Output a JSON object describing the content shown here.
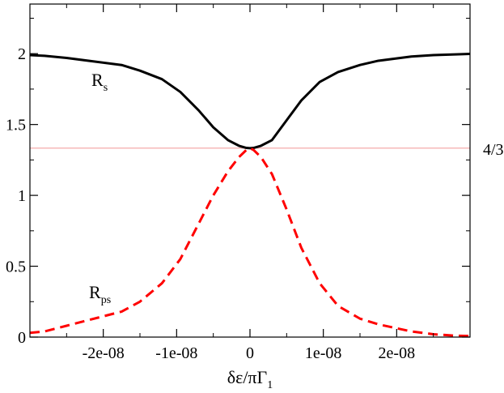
{
  "chart_data": {
    "type": "line",
    "xlabel": "δε/πΓ",
    "xlabel_sub": "1",
    "ylabel": "",
    "xlim": [
      -3e-08,
      3e-08
    ],
    "ylim": [
      0,
      2.35
    ],
    "x_ticks": [
      -2e-08,
      -1e-08,
      0,
      1e-08,
      2e-08
    ],
    "x_tick_labels": [
      "-2e-08",
      "-1e-08",
      "0",
      "1e-08",
      "2e-08"
    ],
    "y_ticks": [
      0,
      0.5,
      1,
      1.5,
      2
    ],
    "y_tick_labels": [
      "0",
      "0.5",
      "1",
      "1.5",
      "2"
    ],
    "grid": false,
    "legend": "none",
    "series": [
      {
        "label_main": "R",
        "label_sub": "s",
        "color": "#000000",
        "style": "solid",
        "x": [
          -3e-08,
          -2.8e-08,
          -2.5e-08,
          -2.2e-08,
          -1.75e-08,
          -1.5e-08,
          -1.2e-08,
          -9.5e-09,
          -7e-09,
          -5e-09,
          -3e-09,
          -1.5e-09,
          -5e-10,
          0,
          5e-10,
          1.5e-09,
          3e-09,
          5e-09,
          7e-09,
          9.5e-09,
          1.2e-08,
          1.5e-08,
          1.75e-08,
          2.2e-08,
          2.5e-08,
          2.8e-08,
          3e-08
        ],
        "y": [
          1.99,
          1.985,
          1.97,
          1.95,
          1.92,
          1.88,
          1.82,
          1.73,
          1.6,
          1.48,
          1.39,
          1.35,
          1.335,
          1.333,
          1.335,
          1.35,
          1.39,
          1.53,
          1.67,
          1.8,
          1.87,
          1.92,
          1.95,
          1.98,
          1.99,
          1.995,
          1.998
        ]
      },
      {
        "label_main": "R",
        "label_sub": "ps",
        "color": "#ff0000",
        "style": "dashed",
        "x": [
          -3e-08,
          -2.8e-08,
          -2.5e-08,
          -2.2e-08,
          -1.75e-08,
          -1.5e-08,
          -1.2e-08,
          -9.5e-09,
          -7e-09,
          -5e-09,
          -3e-09,
          -1.5e-09,
          -5e-10,
          0,
          5e-10,
          1.5e-09,
          3e-09,
          5e-09,
          7e-09,
          9.5e-09,
          1.2e-08,
          1.5e-08,
          1.75e-08,
          2.2e-08,
          2.5e-08,
          2.8e-08,
          3e-08
        ],
        "y": [
          0.03,
          0.04,
          0.08,
          0.12,
          0.18,
          0.25,
          0.38,
          0.55,
          0.8,
          1.0,
          1.17,
          1.27,
          1.32,
          1.333,
          1.32,
          1.27,
          1.15,
          0.9,
          0.63,
          0.38,
          0.22,
          0.13,
          0.09,
          0.04,
          0.02,
          0.01,
          0.008
        ]
      }
    ],
    "reference_line": {
      "y": 1.3333,
      "label": "4/3",
      "color": "#f4a0a0"
    }
  }
}
